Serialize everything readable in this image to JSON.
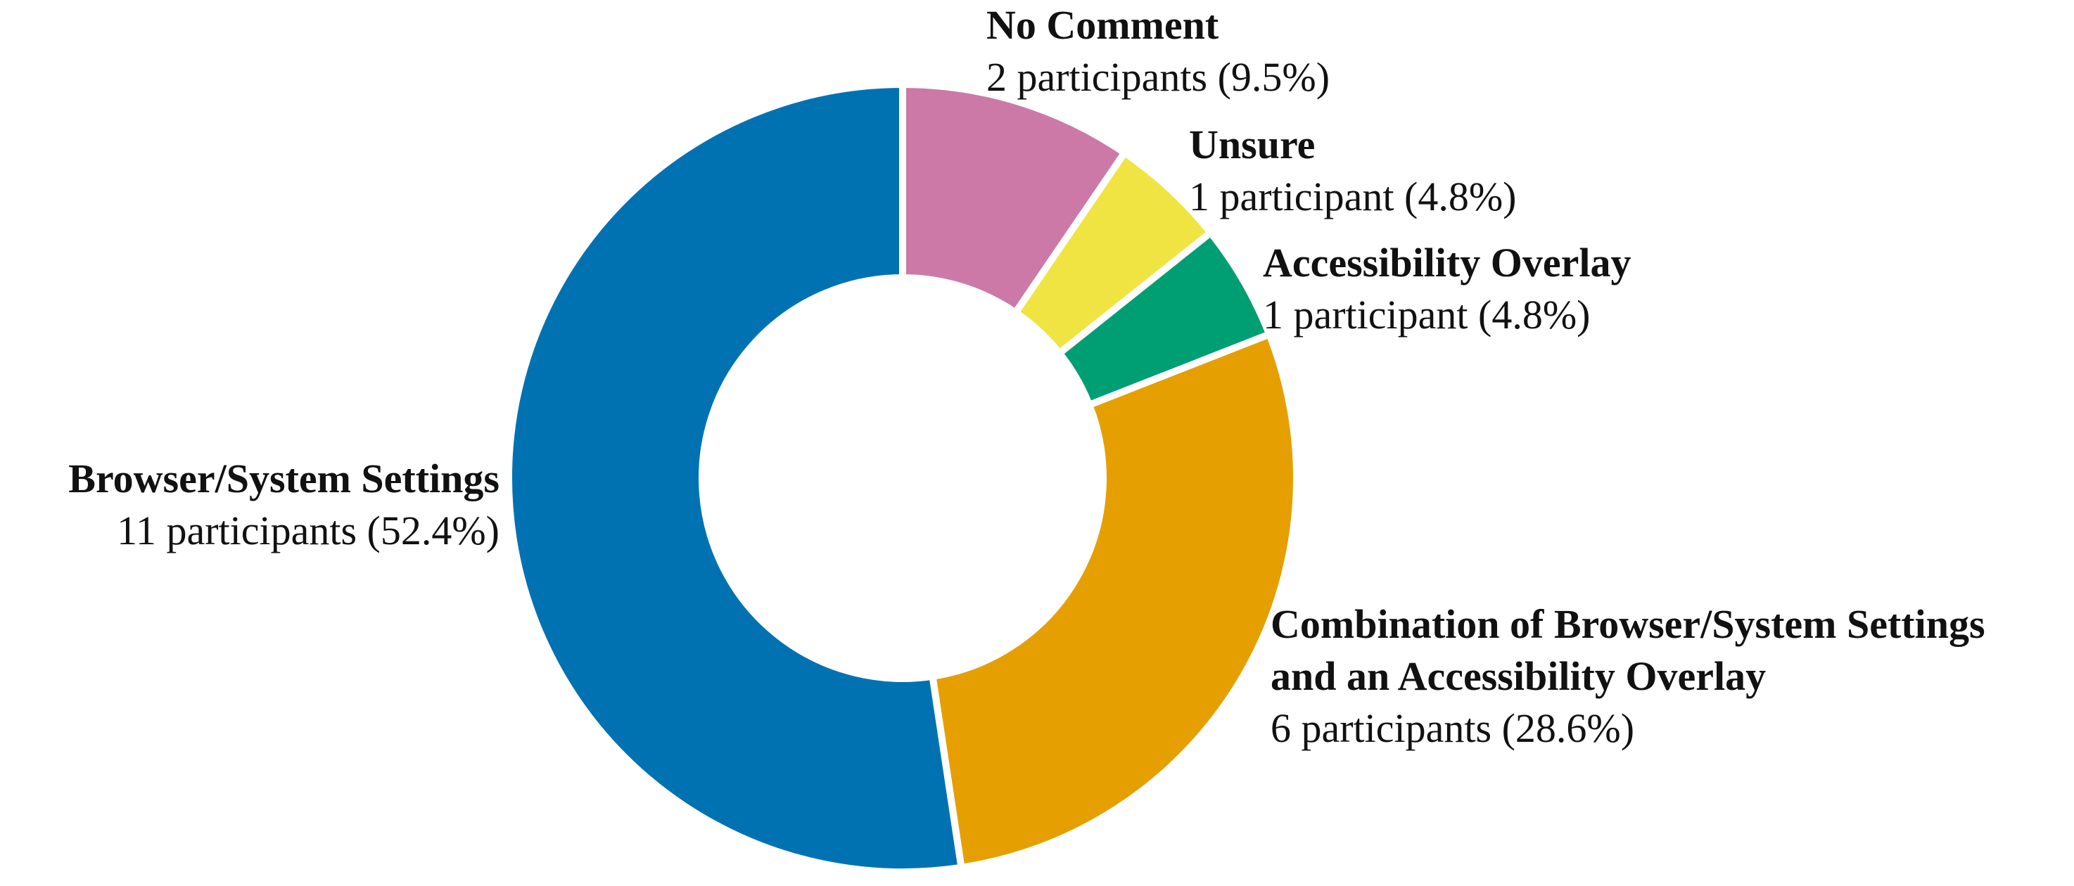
{
  "chart_data": {
    "type": "pie",
    "variant": "donut",
    "slices": [
      {
        "name": "No Comment",
        "label_lines": [
          "No Comment"
        ],
        "value": 2,
        "detail": "2 participants (9.5%)",
        "percent": 9.5,
        "color": "#CC79A7"
      },
      {
        "name": "Unsure",
        "label_lines": [
          "Unsure"
        ],
        "value": 1,
        "detail": "1 participant (4.8%)",
        "percent": 4.8,
        "color": "#F0E442"
      },
      {
        "name": "Accessibility Overlay",
        "label_lines": [
          "Accessibility Overlay"
        ],
        "value": 1,
        "detail": "1 participant (4.8%)",
        "percent": 4.8,
        "color": "#009E73"
      },
      {
        "name": "Combination of Browser/System Settings and an Accessibility Overlay",
        "label_lines": [
          "Combination of Browser/System Settings",
          "and an Accessibility Overlay"
        ],
        "value": 6,
        "detail": "6 participants (28.6%)",
        "percent": 28.6,
        "color": "#E69F00"
      },
      {
        "name": "Browser/System Settings",
        "label_lines": [
          "Browser/System Settings"
        ],
        "value": 11,
        "detail": "11 participants (52.4%)",
        "percent": 52.4,
        "color": "#0072B2"
      }
    ],
    "start_angle": "12 o'clock",
    "direction": "clockwise",
    "separator_color": "#FFFFFF"
  }
}
